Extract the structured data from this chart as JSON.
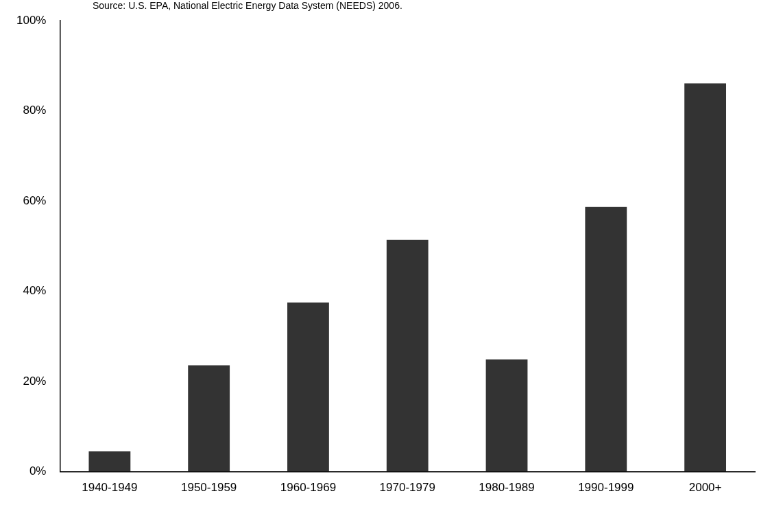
{
  "chart_data": {
    "type": "bar",
    "annotations": [
      "Source: U.S. EPA, National Electric Energy Data System (NEEDS) 2006."
    ],
    "categories": [
      "1940-1949",
      "1950-1959",
      "1960-1969",
      "1970-1979",
      "1980-1989",
      "1990-1999",
      "2000+"
    ],
    "values": [
      4.5,
      23.6,
      37.5,
      51.4,
      24.9,
      58.7,
      86.1
    ],
    "color": "#333333",
    "ylim": [
      0,
      100
    ],
    "yticks": [
      {
        "value": 0,
        "label": "0%"
      },
      {
        "value": 20,
        "label": "20%"
      },
      {
        "value": 40,
        "label": "40%"
      },
      {
        "value": 60,
        "label": "60%"
      },
      {
        "value": 80,
        "label": "80%"
      },
      {
        "value": 100,
        "label": "100%"
      }
    ],
    "grid": false,
    "legend": false
  }
}
